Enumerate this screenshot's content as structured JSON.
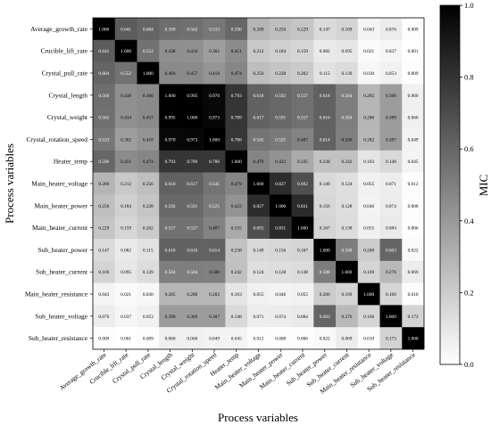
{
  "chart_data": {
    "type": "heatmap",
    "title": "",
    "xlabel": "Process variables",
    "ylabel": "Process variables",
    "colorbar_label": "MIC",
    "colorbar_ticks": [
      "0.0",
      "0.2",
      "0.4",
      "0.6",
      "0.8",
      "1.0"
    ],
    "vmin": 0.0,
    "vmax": 1.0,
    "colormap": [
      "#ffffff",
      "#000000"
    ],
    "variables": [
      "Average_growth_rate",
      "Crucible_lift_rate",
      "Crystal_pull_rate",
      "Crystal_length",
      "Crystal_weight",
      "Crystal_rotation_speed",
      "Heater_temp",
      "Main_heater_voltage",
      "Main_heater_power",
      "Main_heater_current",
      "Sub_heater_power",
      "Sub_heater_current",
      "Main_heater_resistance",
      "Sub_heater_voltage",
      "Sub_heater_resistance"
    ],
    "matrix": [
      [
        1.0,
        0.641,
        0.604,
        0.569,
        0.562,
        0.533,
        0.596,
        0.289,
        0.25,
        0.229,
        0.147,
        0.169,
        0.043,
        0.076,
        0.009
      ],
      [
        0.641,
        1.0,
        0.552,
        0.438,
        0.434,
        0.382,
        0.451,
        0.212,
        0.184,
        0.159,
        0.082,
        0.095,
        0.021,
        0.037,
        0.001
      ],
      [
        0.604,
        0.552,
        1.0,
        0.46,
        0.457,
        0.418,
        0.474,
        0.256,
        0.228,
        0.202,
        0.115,
        0.139,
        0.03,
        0.053,
        0.009
      ],
      [
        0.569,
        0.438,
        0.46,
        1.0,
        0.995,
        0.97,
        0.793,
        0.618,
        0.592,
        0.557,
        0.618,
        0.504,
        0.285,
        0.39,
        0.06
      ],
      [
        0.562,
        0.434,
        0.457,
        0.995,
        1.0,
        0.973,
        0.789,
        0.617,
        0.591,
        0.557,
        0.616,
        0.504,
        0.286,
        0.389,
        0.06
      ],
      [
        0.533,
        0.382,
        0.418,
        0.97,
        0.973,
        1.0,
        0.786,
        0.545,
        0.525,
        0.487,
        0.614,
        0.5,
        0.282,
        0.387,
        0.049
      ],
      [
        0.596,
        0.451,
        0.474,
        0.793,
        0.789,
        0.786,
        1.0,
        0.479,
        0.422,
        0.335,
        0.238,
        0.242,
        0.103,
        0.148,
        0.045
      ],
      [
        0.289,
        0.212,
        0.256,
        0.618,
        0.617,
        0.545,
        0.479,
        1.0,
        0.827,
        0.692,
        0.149,
        0.124,
        0.055,
        0.071,
        0.012
      ],
      [
        0.25,
        0.184,
        0.228,
        0.592,
        0.591,
        0.525,
        0.422,
        0.827,
        1.0,
        0.831,
        0.156,
        0.128,
        0.046,
        0.074,
        0.008
      ],
      [
        0.229,
        0.159,
        0.202,
        0.557,
        0.557,
        0.487,
        0.335,
        0.692,
        0.831,
        1.0,
        0.167,
        0.138,
        0.055,
        0.084,
        0.006
      ],
      [
        0.147,
        0.082,
        0.115,
        0.618,
        0.616,
        0.614,
        0.238,
        0.149,
        0.156,
        0.167,
        1.0,
        0.508,
        0.2,
        0.603,
        0.022
      ],
      [
        0.169,
        0.095,
        0.139,
        0.504,
        0.504,
        0.5,
        0.242,
        0.124,
        0.128,
        0.138,
        0.508,
        1.0,
        0.169,
        0.276,
        0.069
      ],
      [
        0.043,
        0.021,
        0.03,
        0.285,
        0.286,
        0.282,
        0.103,
        0.055,
        0.046,
        0.055,
        0.2,
        0.169,
        1.0,
        0.166,
        0.01
      ],
      [
        0.076,
        0.037,
        0.053,
        0.39,
        0.389,
        0.387,
        0.148,
        0.071,
        0.074,
        0.084,
        0.603,
        0.276,
        0.166,
        1.0,
        0.173
      ],
      [
        0.009,
        0.001,
        0.009,
        0.06,
        0.06,
        0.049,
        0.045,
        0.012,
        0.008,
        0.006,
        0.022,
        0.069,
        0.01,
        0.173,
        1.0
      ]
    ]
  }
}
